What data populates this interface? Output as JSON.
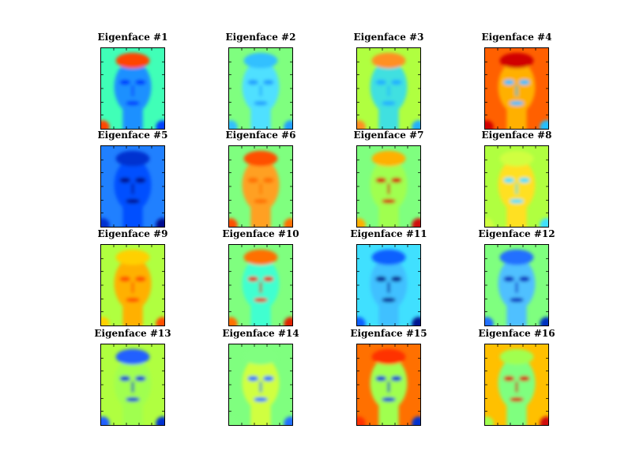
{
  "figure": {
    "colormap": [
      "#00007f",
      "#0000ff",
      "#007fff",
      "#00ffff",
      "#7fff7f",
      "#ffff00",
      "#ff7f00",
      "#ff0000",
      "#7f0000"
    ],
    "panels": [
      {
        "title": "Eigenface #1",
        "background": "#40ffb7",
        "face": "#1e90ff",
        "hair": "#ff4500",
        "features": "#0040ff"
      },
      {
        "title": "Eigenface #2",
        "background": "#7fff7f",
        "face": "#50e0ff",
        "hair": "#30c0ff",
        "features": "#20a0ff"
      },
      {
        "title": "Eigenface #3",
        "background": "#b0ff40",
        "face": "#40e0e0",
        "hair": "#ff9020",
        "features": "#20b0ff"
      },
      {
        "title": "Eigenface #4",
        "background": "#ff6000",
        "face": "#ffb000",
        "hair": "#d00000",
        "features": "#20c0ff"
      },
      {
        "title": "Eigenface #5",
        "background": "#2080ff",
        "face": "#0050ff",
        "hair": "#0030d0",
        "features": "#001090"
      },
      {
        "title": "Eigenface #6",
        "background": "#7fff7f",
        "face": "#ffa020",
        "hair": "#ff5000",
        "features": "#ff7000"
      },
      {
        "title": "Eigenface #7",
        "background": "#7fff7f",
        "face": "#a0ff50",
        "hair": "#ffb000",
        "features": "#d01010"
      },
      {
        "title": "Eigenface #8",
        "background": "#b0ff40",
        "face": "#ffe020",
        "hair": "#d0ff40",
        "features": "#40e0ff"
      },
      {
        "title": "Eigenface #9",
        "background": "#b0ff40",
        "face": "#ffb000",
        "hair": "#ffd000",
        "features": "#ff5000"
      },
      {
        "title": "Eigenface #10",
        "background": "#7fff7f",
        "face": "#40ffd0",
        "hair": "#ff7000",
        "features": "#e02000"
      },
      {
        "title": "Eigenface #11",
        "background": "#40e0ff",
        "face": "#40c0ff",
        "hair": "#1060ff",
        "features": "#001890"
      },
      {
        "title": "Eigenface #12",
        "background": "#7fff7f",
        "face": "#50c0ff",
        "hair": "#2070ff",
        "features": "#0030c0"
      },
      {
        "title": "Eigenface #13",
        "background": "#b0ff40",
        "face": "#a0ff50",
        "hair": "#2060ff",
        "features": "#0030d0"
      },
      {
        "title": "Eigenface #14",
        "background": "#7fff7f",
        "face": "#d0ff40",
        "hair": "#80ff80",
        "features": "#2070ff"
      },
      {
        "title": "Eigenface #15",
        "background": "#ff7000",
        "face": "#a0ff50",
        "hair": "#ff3000",
        "features": "#0030d0"
      },
      {
        "title": "Eigenface #16",
        "background": "#ffc000",
        "face": "#7fff7f",
        "hair": "#a0ff50",
        "features": "#d01010"
      }
    ]
  }
}
